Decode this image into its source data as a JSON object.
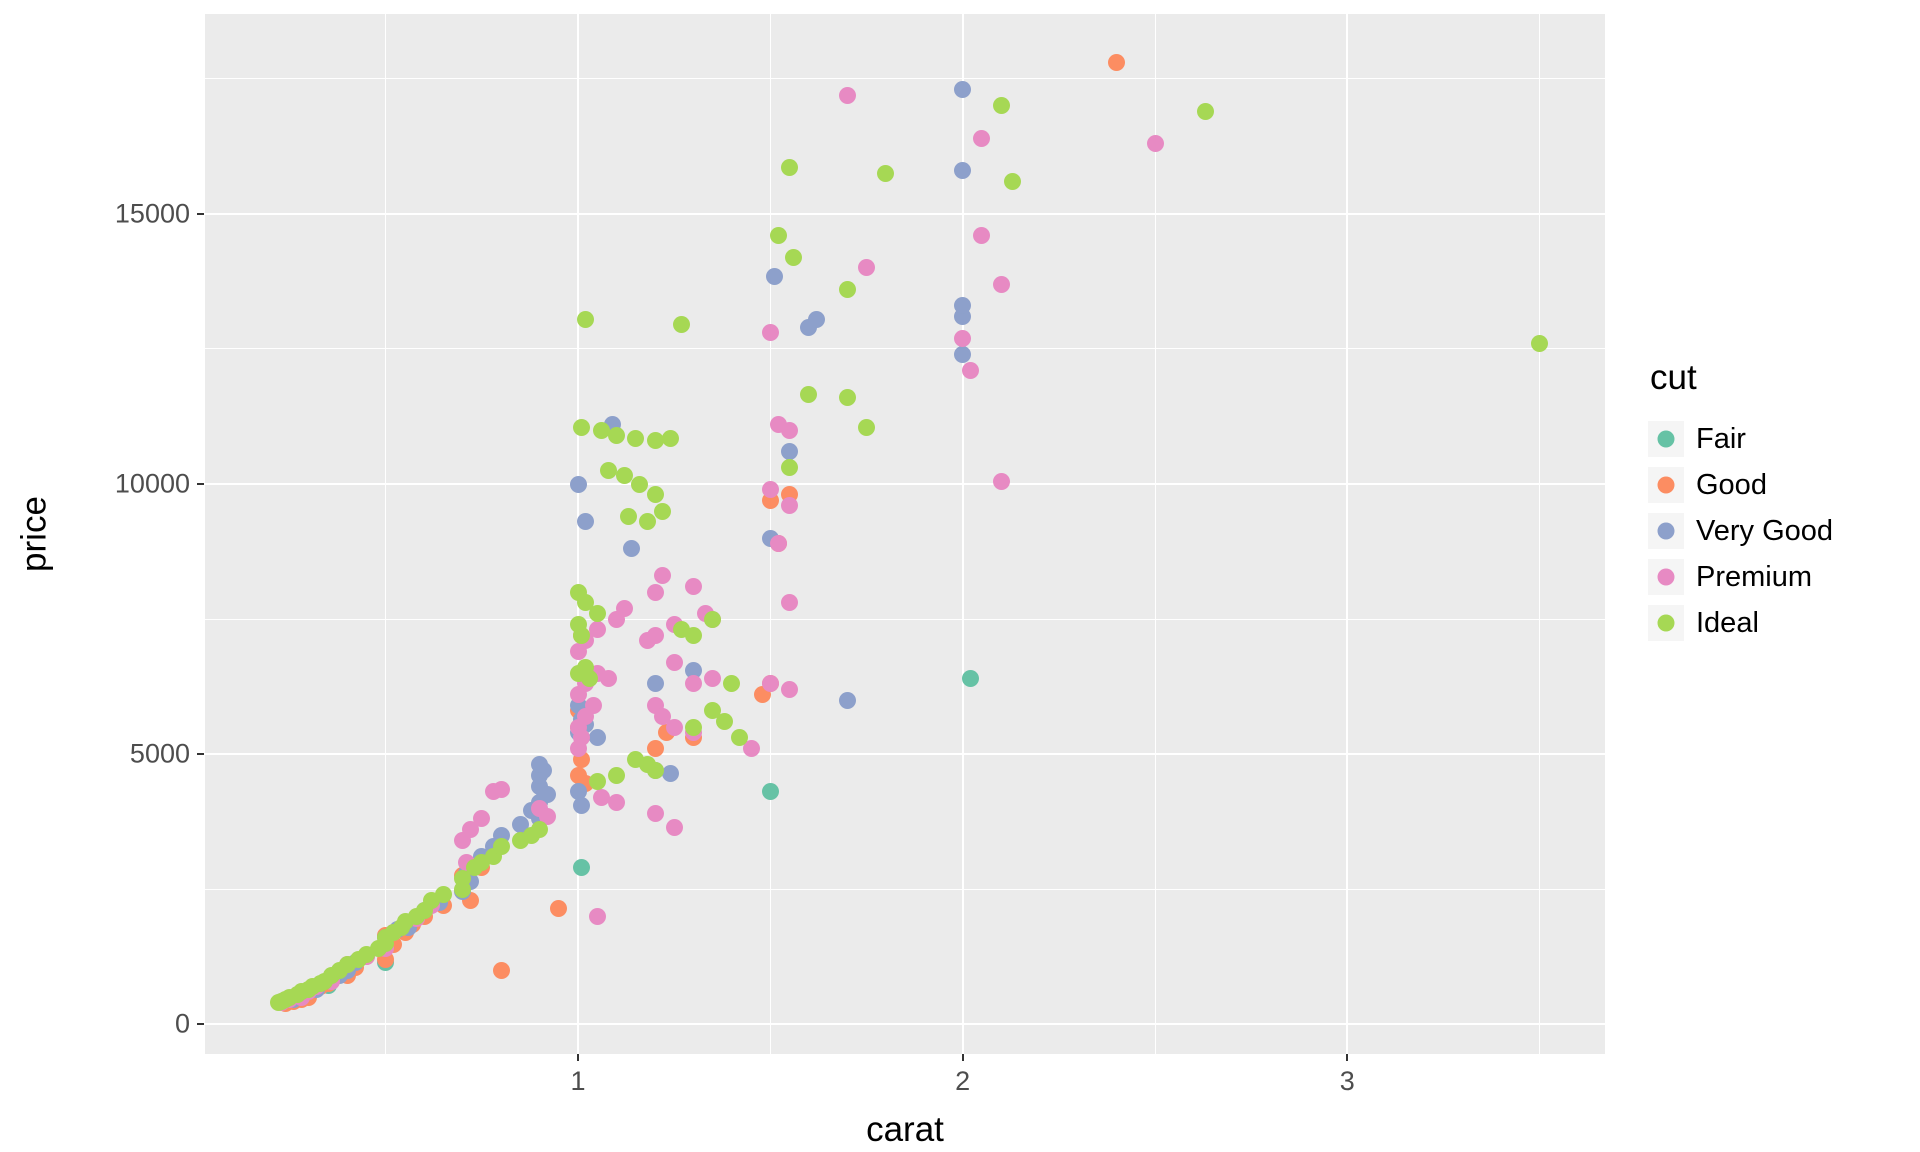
{
  "chart_data": {
    "type": "scatter",
    "title": "",
    "xlabel": "carat",
    "ylabel": "price",
    "legend_title": "cut",
    "legend_position": "right",
    "grid": true,
    "panel_bg": "#EBEBEB",
    "grid_color": "#FFFFFF",
    "x_ticks": [
      1,
      2,
      3
    ],
    "y_ticks": [
      0,
      5000,
      10000,
      15000
    ],
    "x_minor": [
      0.5,
      1.5,
      2.5,
      3.5
    ],
    "y_minor": [
      2500,
      7500,
      12500,
      17500
    ],
    "x_domain": [
      0.03,
      3.67
    ],
    "y_domain": [
      -550,
      18700
    ],
    "series": [
      {
        "name": "Fair",
        "color": "#66C2A5",
        "points": [
          [
            0.35,
            720
          ],
          [
            0.5,
            1150
          ],
          [
            1.01,
            2900
          ],
          [
            1.5,
            4300
          ],
          [
            2.02,
            6400
          ]
        ]
      },
      {
        "name": "Good",
        "color": "#FC8D62",
        "points": [
          [
            0.24,
            390
          ],
          [
            0.26,
            430
          ],
          [
            0.28,
            450
          ],
          [
            0.3,
            500
          ],
          [
            0.3,
            560
          ],
          [
            0.31,
            650
          ],
          [
            0.33,
            700
          ],
          [
            0.35,
            760
          ],
          [
            0.4,
            900
          ],
          [
            0.42,
            1050
          ],
          [
            0.45,
            1250
          ],
          [
            0.5,
            1200
          ],
          [
            0.5,
            1650
          ],
          [
            0.52,
            1480
          ],
          [
            0.55,
            1700
          ],
          [
            0.57,
            1850
          ],
          [
            0.6,
            2000
          ],
          [
            0.65,
            2200
          ],
          [
            0.7,
            2750
          ],
          [
            0.72,
            2300
          ],
          [
            0.75,
            2900
          ],
          [
            0.8,
            1000
          ],
          [
            0.95,
            2150
          ],
          [
            1.0,
            4600
          ],
          [
            1.0,
            5500
          ],
          [
            1.0,
            5800
          ],
          [
            1.01,
            4900
          ],
          [
            1.01,
            7200
          ],
          [
            1.02,
            4450
          ],
          [
            1.2,
            5100
          ],
          [
            1.23,
            5400
          ],
          [
            1.3,
            5300
          ],
          [
            1.48,
            6100
          ],
          [
            1.5,
            6300
          ],
          [
            1.5,
            9700
          ],
          [
            1.52,
            8900
          ],
          [
            1.55,
            9800
          ],
          [
            2.4,
            17800
          ]
        ]
      },
      {
        "name": "Very Good",
        "color": "#8DA0CB",
        "points": [
          [
            0.23,
            420
          ],
          [
            0.26,
            450
          ],
          [
            0.3,
            600
          ],
          [
            0.32,
            650
          ],
          [
            0.38,
            900
          ],
          [
            0.4,
            1000
          ],
          [
            0.42,
            1150
          ],
          [
            0.5,
            1600
          ],
          [
            0.53,
            1750
          ],
          [
            0.56,
            1800
          ],
          [
            0.6,
            2100
          ],
          [
            0.64,
            2250
          ],
          [
            0.7,
            2450
          ],
          [
            0.71,
            2800
          ],
          [
            0.72,
            2650
          ],
          [
            0.75,
            3100
          ],
          [
            0.78,
            3300
          ],
          [
            0.8,
            3500
          ],
          [
            0.85,
            3700
          ],
          [
            0.88,
            3950
          ],
          [
            0.9,
            3800
          ],
          [
            0.9,
            4100
          ],
          [
            0.9,
            4400
          ],
          [
            0.9,
            4600
          ],
          [
            0.91,
            4700
          ],
          [
            0.92,
            4250
          ],
          [
            0.9,
            4800
          ],
          [
            1.0,
            4300
          ],
          [
            1.0,
            5400
          ],
          [
            1.0,
            5900
          ],
          [
            1.0,
            10000
          ],
          [
            1.01,
            4050
          ],
          [
            1.01,
            5650
          ],
          [
            1.02,
            5550
          ],
          [
            1.02,
            9300
          ],
          [
            1.05,
            5300
          ],
          [
            1.09,
            11100
          ],
          [
            1.14,
            8800
          ],
          [
            1.2,
            4700
          ],
          [
            1.2,
            6300
          ],
          [
            1.24,
            4650
          ],
          [
            1.3,
            6550
          ],
          [
            1.5,
            9000
          ],
          [
            1.51,
            13850
          ],
          [
            1.55,
            10600
          ],
          [
            1.6,
            12900
          ],
          [
            1.62,
            13050
          ],
          [
            1.7,
            6000
          ],
          [
            2.0,
            12400
          ],
          [
            2.0,
            13100
          ],
          [
            2.0,
            13300
          ],
          [
            2.0,
            15800
          ],
          [
            2.0,
            17300
          ]
        ]
      },
      {
        "name": "Premium",
        "color": "#E78AC3",
        "points": [
          [
            0.23,
            400
          ],
          [
            0.25,
            450
          ],
          [
            0.28,
            500
          ],
          [
            0.3,
            600
          ],
          [
            0.32,
            700
          ],
          [
            0.36,
            800
          ],
          [
            0.4,
            1100
          ],
          [
            0.45,
            1250
          ],
          [
            0.5,
            1400
          ],
          [
            0.52,
            1700
          ],
          [
            0.58,
            1950
          ],
          [
            0.62,
            2200
          ],
          [
            0.7,
            3400
          ],
          [
            0.71,
            3000
          ],
          [
            0.72,
            3600
          ],
          [
            0.75,
            3800
          ],
          [
            0.78,
            4300
          ],
          [
            0.8,
            4350
          ],
          [
            0.9,
            4000
          ],
          [
            0.92,
            3850
          ],
          [
            1.0,
            5100
          ],
          [
            1.0,
            5500
          ],
          [
            1.0,
            6100
          ],
          [
            1.0,
            6900
          ],
          [
            1.01,
            5300
          ],
          [
            1.02,
            5700
          ],
          [
            1.02,
            6300
          ],
          [
            1.02,
            7100
          ],
          [
            1.04,
            5900
          ],
          [
            1.05,
            2000
          ],
          [
            1.05,
            6500
          ],
          [
            1.05,
            7300
          ],
          [
            1.06,
            4200
          ],
          [
            1.08,
            6400
          ],
          [
            1.1,
            4100
          ],
          [
            1.1,
            7500
          ],
          [
            1.12,
            7700
          ],
          [
            1.18,
            7100
          ],
          [
            1.2,
            3900
          ],
          [
            1.2,
            5900
          ],
          [
            1.2,
            7200
          ],
          [
            1.2,
            8000
          ],
          [
            1.22,
            5700
          ],
          [
            1.22,
            8300
          ],
          [
            1.25,
            3650
          ],
          [
            1.25,
            5500
          ],
          [
            1.25,
            6700
          ],
          [
            1.25,
            7400
          ],
          [
            1.3,
            5400
          ],
          [
            1.3,
            6300
          ],
          [
            1.3,
            8100
          ],
          [
            1.33,
            7600
          ],
          [
            1.35,
            6400
          ],
          [
            1.35,
            7500
          ],
          [
            1.45,
            5100
          ],
          [
            1.5,
            6300
          ],
          [
            1.5,
            9900
          ],
          [
            1.5,
            12800
          ],
          [
            1.52,
            8900
          ],
          [
            1.52,
            11100
          ],
          [
            1.55,
            6200
          ],
          [
            1.55,
            7800
          ],
          [
            1.55,
            9600
          ],
          [
            1.55,
            11000
          ],
          [
            1.7,
            17200
          ],
          [
            1.75,
            14000
          ],
          [
            2.0,
            12700
          ],
          [
            2.02,
            12100
          ],
          [
            2.05,
            14600
          ],
          [
            2.05,
            16400
          ],
          [
            2.1,
            10050
          ],
          [
            2.1,
            13700
          ],
          [
            2.5,
            16300
          ]
        ]
      },
      {
        "name": "Ideal",
        "color": "#A6D854",
        "points": [
          [
            0.22,
            400
          ],
          [
            0.23,
            430
          ],
          [
            0.24,
            460
          ],
          [
            0.25,
            500
          ],
          [
            0.27,
            550
          ],
          [
            0.28,
            600
          ],
          [
            0.3,
            650
          ],
          [
            0.31,
            700
          ],
          [
            0.33,
            750
          ],
          [
            0.34,
            800
          ],
          [
            0.36,
            900
          ],
          [
            0.38,
            1000
          ],
          [
            0.4,
            1100
          ],
          [
            0.43,
            1200
          ],
          [
            0.45,
            1300
          ],
          [
            0.48,
            1400
          ],
          [
            0.5,
            1500
          ],
          [
            0.5,
            1600
          ],
          [
            0.52,
            1700
          ],
          [
            0.54,
            1800
          ],
          [
            0.55,
            1900
          ],
          [
            0.58,
            2000
          ],
          [
            0.6,
            2100
          ],
          [
            0.62,
            2300
          ],
          [
            0.65,
            2400
          ],
          [
            0.7,
            2500
          ],
          [
            0.7,
            2700
          ],
          [
            0.73,
            2900
          ],
          [
            0.75,
            3000
          ],
          [
            0.78,
            3100
          ],
          [
            0.8,
            3300
          ],
          [
            0.85,
            3400
          ],
          [
            0.88,
            3500
          ],
          [
            0.9,
            3600
          ],
          [
            1.0,
            6500
          ],
          [
            1.0,
            7400
          ],
          [
            1.0,
            8000
          ],
          [
            1.01,
            7200
          ],
          [
            1.01,
            11050
          ],
          [
            1.02,
            6600
          ],
          [
            1.02,
            7800
          ],
          [
            1.02,
            13050
          ],
          [
            1.03,
            6400
          ],
          [
            1.05,
            4500
          ],
          [
            1.05,
            7600
          ],
          [
            1.06,
            11000
          ],
          [
            1.08,
            10250
          ],
          [
            1.1,
            4600
          ],
          [
            1.1,
            10900
          ],
          [
            1.12,
            10150
          ],
          [
            1.13,
            9400
          ],
          [
            1.15,
            4900
          ],
          [
            1.15,
            10850
          ],
          [
            1.16,
            10000
          ],
          [
            1.18,
            4800
          ],
          [
            1.18,
            9300
          ],
          [
            1.2,
            4700
          ],
          [
            1.2,
            9800
          ],
          [
            1.2,
            10800
          ],
          [
            1.22,
            9500
          ],
          [
            1.24,
            10850
          ],
          [
            1.27,
            7300
          ],
          [
            1.27,
            12950
          ],
          [
            1.3,
            5500
          ],
          [
            1.3,
            7200
          ],
          [
            1.35,
            5800
          ],
          [
            1.35,
            7500
          ],
          [
            1.38,
            5600
          ],
          [
            1.4,
            6300
          ],
          [
            1.42,
            5300
          ],
          [
            1.52,
            14600
          ],
          [
            1.55,
            10300
          ],
          [
            1.55,
            15850
          ],
          [
            1.56,
            14200
          ],
          [
            1.6,
            11650
          ],
          [
            1.7,
            11600
          ],
          [
            1.7,
            13600
          ],
          [
            1.75,
            11050
          ],
          [
            1.8,
            15750
          ],
          [
            2.1,
            17000
          ],
          [
            2.13,
            15600
          ],
          [
            2.63,
            16900
          ],
          [
            3.5,
            12600
          ]
        ]
      }
    ]
  }
}
